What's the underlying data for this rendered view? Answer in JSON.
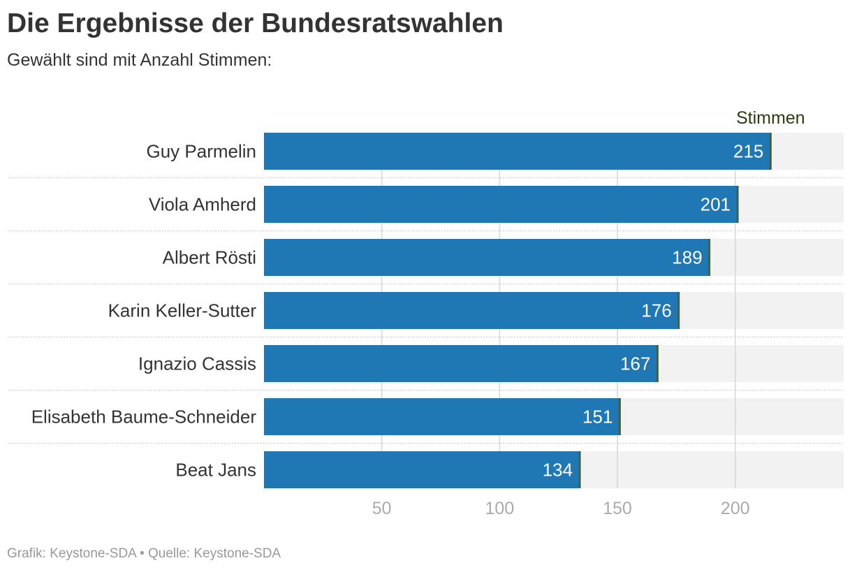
{
  "header": {
    "title": "Die Ergebnisse der Bundesratswahlen",
    "subtitle": "Gewählt sind mit Anzahl Stimmen:"
  },
  "footer": {
    "source": "Grafik: Keystone-SDA • Quelle: Keystone-SDA"
  },
  "colors": {
    "bar": "#1f77b4",
    "track": "#f2f2f2",
    "marker": "#4d5c3a",
    "grid": "#d6d6d6"
  },
  "chart_data": {
    "type": "bar",
    "orientation": "horizontal",
    "title": "Die Ergebnisse der Bundesratswahlen",
    "subtitle": "Gewählt sind mit Anzahl Stimmen:",
    "unit_label": "Stimmen",
    "categories": [
      "Guy Parmelin",
      "Viola Amherd",
      "Albert Rösti",
      "Karin Keller-Sutter",
      "Ignazio Cassis",
      "Elisabeth Baume-Schneider",
      "Beat Jans"
    ],
    "values": [
      215,
      201,
      189,
      176,
      167,
      151,
      134
    ],
    "xlim": [
      0,
      246
    ],
    "xticks": [
      50,
      100,
      150,
      200
    ],
    "grid": true,
    "legend": "none"
  }
}
